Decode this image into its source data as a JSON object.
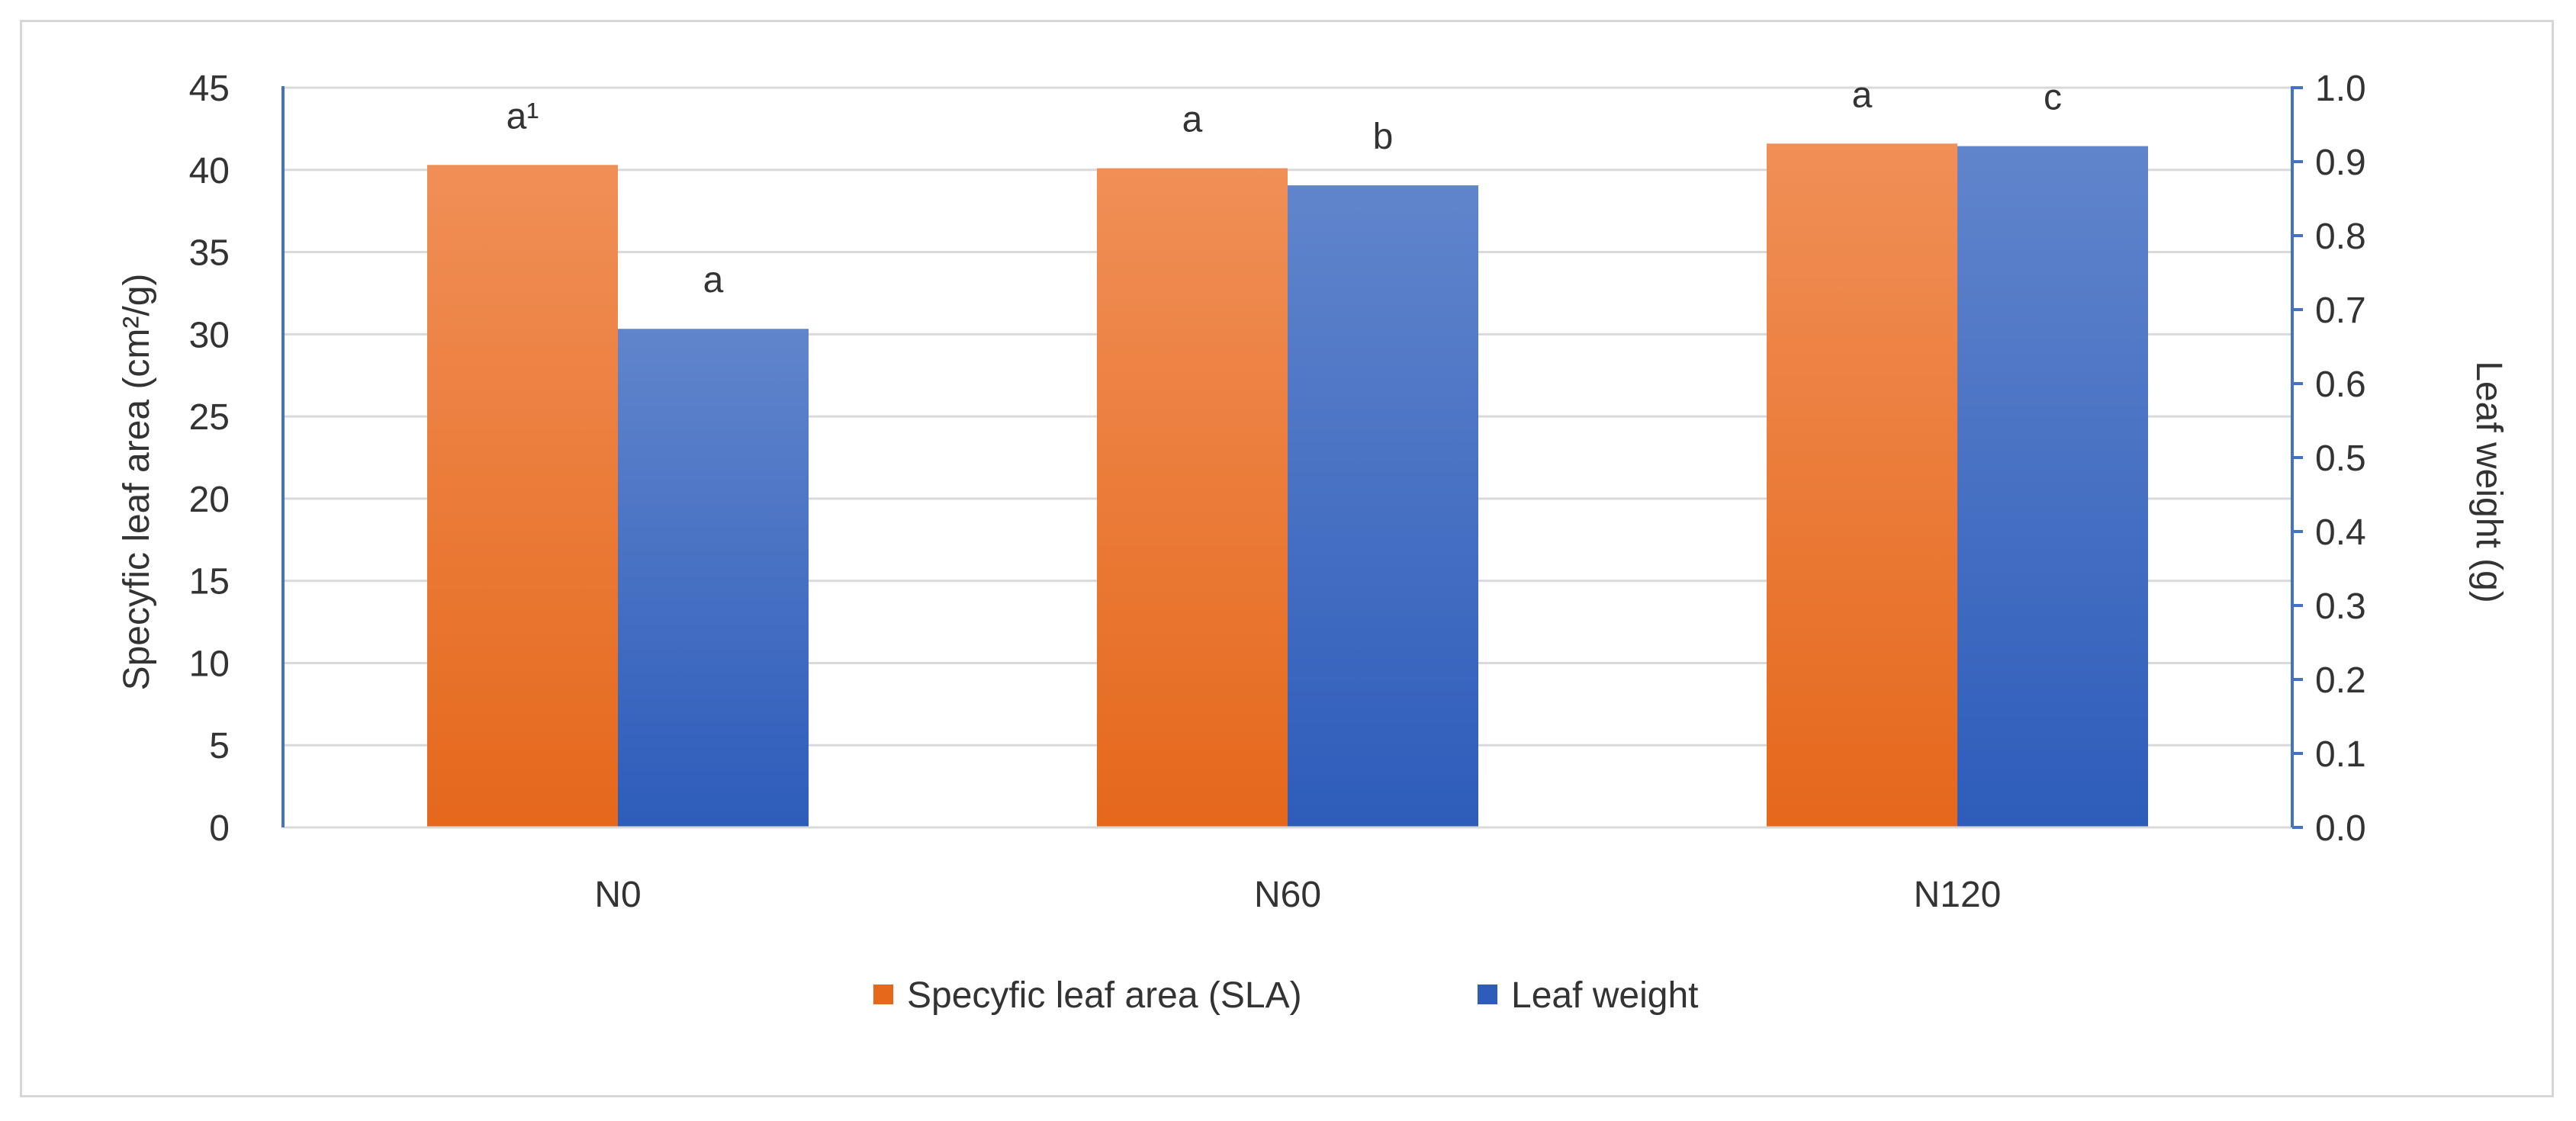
{
  "chart_data": {
    "type": "bar",
    "categories": [
      "N0",
      "N60",
      "N120"
    ],
    "y_axis_left": {
      "label": "Specyfic leaf area (cm²/g)",
      "range": [
        0,
        45
      ],
      "step": 5,
      "ticks": [
        "0",
        "5",
        "10",
        "15",
        "20",
        "25",
        "30",
        "35",
        "40",
        "45"
      ]
    },
    "y_axis_right": {
      "label": "Leaf weight (g)",
      "range": [
        0,
        1.0
      ],
      "step": 0.1,
      "ticks": [
        "0.0",
        "0.1",
        "0.2",
        "0.3",
        "0.4",
        "0.5",
        "0.6",
        "0.7",
        "0.8",
        "0.9",
        "1.0"
      ]
    },
    "grid": true,
    "legend_position": "bottom",
    "series": [
      {
        "name": "Specyfic leaf area (SLA)",
        "axis": "left",
        "values": [
          40.3,
          40.1,
          41.6
        ],
        "labels": [
          "a¹",
          "a",
          "a"
        ],
        "color_top": "#f08f57",
        "color_bottom": "#e5681b"
      },
      {
        "name": "Leaf weight",
        "axis": "right",
        "values": [
          0.674,
          0.868,
          0.921
        ],
        "labels": [
          "a",
          "b",
          "c"
        ],
        "color_top": "#6185cc",
        "color_bottom": "#2d5cba"
      }
    ]
  }
}
